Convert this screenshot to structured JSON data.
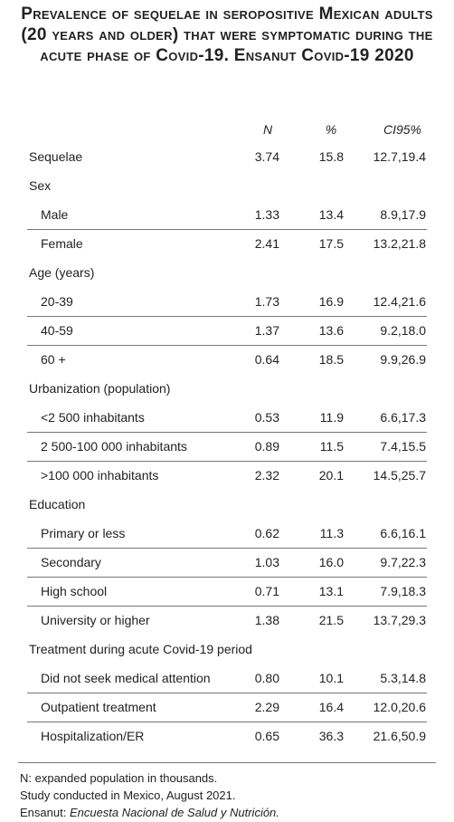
{
  "title": "Prevalence of sequelae in seropositive Mexican adults (20 years and older) that were symptomatic during the acute phase of Covid-19. Ensanut Covid-19 2020",
  "table": {
    "columns": [
      "N",
      "%",
      "CI95%"
    ],
    "sections": [
      {
        "label": "Sequelae",
        "values": [
          "3.74",
          "15.8",
          "12.7,19.4"
        ]
      },
      {
        "label": "Sex",
        "items": [
          {
            "label": "Male",
            "values": [
              "1.33",
              "13.4",
              "8.9,17.9"
            ]
          },
          {
            "label": "Female",
            "values": [
              "2.41",
              "17.5",
              "13.2,21.8"
            ]
          }
        ]
      },
      {
        "label": "Age (years)",
        "items": [
          {
            "label": "20-39",
            "values": [
              "1.73",
              "16.9",
              "12.4,21.6"
            ]
          },
          {
            "label": "40-59",
            "values": [
              "1.37",
              "13.6",
              "9.2,18.0"
            ]
          },
          {
            "label": "60 +",
            "values": [
              "0.64",
              "18.5",
              "9.9,26.9"
            ]
          }
        ]
      },
      {
        "label": "Urbanization (population)",
        "items": [
          {
            "label": "<2 500 inhabitants",
            "values": [
              "0.53",
              "11.9",
              "6.6,17.3"
            ]
          },
          {
            "label": "2 500-100 000 inhabitants",
            "values": [
              "0.89",
              "11.5",
              "7.4,15.5"
            ]
          },
          {
            "label": ">100 000 inhabitants",
            "values": [
              "2.32",
              "20.1",
              "14.5,25.7"
            ]
          }
        ]
      },
      {
        "label": "Education",
        "items": [
          {
            "label": "Primary or less",
            "values": [
              "0.62",
              "11.3",
              "6.6,16.1"
            ]
          },
          {
            "label": "Secondary",
            "values": [
              "1.03",
              "16.0",
              "9.7,22.3"
            ]
          },
          {
            "label": "High school",
            "values": [
              "0.71",
              "13.1",
              "7.9,18.3"
            ]
          },
          {
            "label": "University or higher",
            "values": [
              "1.38",
              "21.5",
              "13.7,29.3"
            ]
          }
        ]
      },
      {
        "label": "Treatment during acute Covid-19 period",
        "items": [
          {
            "label": "Did not seek medical attention",
            "values": [
              "0.80",
              "10.1",
              "5.3,14.8"
            ]
          },
          {
            "label": "Outpatient treatment",
            "values": [
              "2.29",
              "16.4",
              "12.0,20.6"
            ]
          },
          {
            "label": "Hospitalization/ER",
            "values": [
              "0.65",
              "36.3",
              "21.6,50.9"
            ]
          }
        ]
      }
    ]
  },
  "notes": [
    "N: expanded population in thousands.",
    "Study conducted in Mexico, August 2021.",
    "Ensanut: "
  ],
  "notes_italic": "Encuesta Nacional de Salud y Nutrición."
}
